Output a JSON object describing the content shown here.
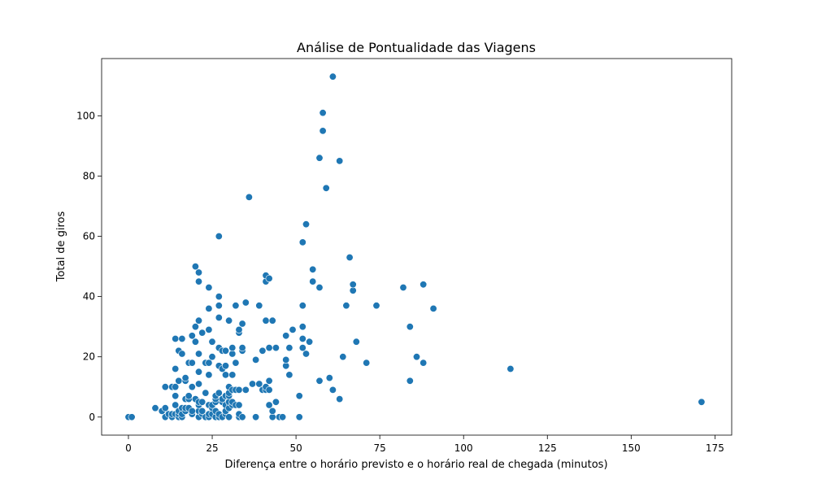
{
  "chart_data": {
    "type": "scatter",
    "title": "Análise de Pontualidade das Viagens",
    "xlabel": "Diferença entre o horário previsto e o horário real de chegada (minutos)",
    "ylabel": "Total de giros",
    "xlim": [
      -8,
      180
    ],
    "ylim": [
      -6,
      119
    ],
    "xticks": [
      0,
      25,
      50,
      75,
      100,
      125,
      150,
      175
    ],
    "yticks": [
      0,
      20,
      40,
      60,
      80,
      100
    ],
    "grid": false,
    "point_color": "#1f77b4",
    "series": [
      {
        "points": [
          [
            0,
            0
          ],
          [
            1,
            0
          ],
          [
            8,
            3
          ],
          [
            10,
            2
          ],
          [
            11,
            0
          ],
          [
            11,
            3
          ],
          [
            11,
            10
          ],
          [
            12,
            1
          ],
          [
            13,
            0
          ],
          [
            13,
            1
          ],
          [
            13,
            10
          ],
          [
            14,
            1
          ],
          [
            14,
            4
          ],
          [
            14,
            7
          ],
          [
            14,
            10
          ],
          [
            14,
            16
          ],
          [
            14,
            26
          ],
          [
            15,
            0
          ],
          [
            15,
            1
          ],
          [
            15,
            2
          ],
          [
            15,
            12
          ],
          [
            15,
            22
          ],
          [
            16,
            0
          ],
          [
            16,
            1
          ],
          [
            16,
            3
          ],
          [
            16,
            21
          ],
          [
            16,
            26
          ],
          [
            17,
            2
          ],
          [
            17,
            3
          ],
          [
            17,
            6
          ],
          [
            17,
            12
          ],
          [
            17,
            13
          ],
          [
            18,
            3
          ],
          [
            18,
            6
          ],
          [
            18,
            7
          ],
          [
            18,
            18
          ],
          [
            19,
            1
          ],
          [
            19,
            2
          ],
          [
            19,
            10
          ],
          [
            19,
            18
          ],
          [
            19,
            27
          ],
          [
            20,
            6
          ],
          [
            20,
            30
          ],
          [
            20,
            50
          ],
          [
            20,
            25
          ],
          [
            21,
            0
          ],
          [
            21,
            2
          ],
          [
            21,
            4
          ],
          [
            21,
            5
          ],
          [
            21,
            11
          ],
          [
            21,
            15
          ],
          [
            21,
            21
          ],
          [
            21,
            32
          ],
          [
            21,
            45
          ],
          [
            21,
            48
          ],
          [
            22,
            1
          ],
          [
            22,
            2
          ],
          [
            22,
            5
          ],
          [
            22,
            28
          ],
          [
            23,
            0
          ],
          [
            23,
            8
          ],
          [
            23,
            18
          ],
          [
            24,
            0
          ],
          [
            24,
            1
          ],
          [
            24,
            4
          ],
          [
            24,
            14
          ],
          [
            24,
            18
          ],
          [
            24,
            29
          ],
          [
            24,
            36
          ],
          [
            24,
            43
          ],
          [
            25,
            1
          ],
          [
            25,
            3
          ],
          [
            25,
            4
          ],
          [
            25,
            20
          ],
          [
            25,
            25
          ],
          [
            26,
            0
          ],
          [
            26,
            2
          ],
          [
            26,
            5
          ],
          [
            26,
            6
          ],
          [
            26,
            7
          ],
          [
            27,
            0
          ],
          [
            27,
            1
          ],
          [
            27,
            8
          ],
          [
            27,
            17
          ],
          [
            27,
            23
          ],
          [
            27,
            33
          ],
          [
            27,
            37
          ],
          [
            27,
            40
          ],
          [
            27,
            60
          ],
          [
            28,
            0
          ],
          [
            28,
            5
          ],
          [
            28,
            6
          ],
          [
            28,
            16
          ],
          [
            28,
            22
          ],
          [
            29,
            1
          ],
          [
            29,
            2
          ],
          [
            29,
            4
          ],
          [
            29,
            7
          ],
          [
            29,
            14
          ],
          [
            29,
            17
          ],
          [
            29,
            22
          ],
          [
            30,
            0
          ],
          [
            30,
            3
          ],
          [
            30,
            5
          ],
          [
            30,
            7
          ],
          [
            30,
            8
          ],
          [
            30,
            10
          ],
          [
            30,
            32
          ],
          [
            31,
            4
          ],
          [
            31,
            5
          ],
          [
            31,
            9
          ],
          [
            31,
            14
          ],
          [
            31,
            21
          ],
          [
            31,
            23
          ],
          [
            32,
            4
          ],
          [
            32,
            9
          ],
          [
            32,
            18
          ],
          [
            32,
            37
          ],
          [
            33,
            0
          ],
          [
            33,
            1
          ],
          [
            33,
            4
          ],
          [
            33,
            28
          ],
          [
            33,
            29
          ],
          [
            33,
            9
          ],
          [
            34,
            0
          ],
          [
            34,
            22
          ],
          [
            34,
            23
          ],
          [
            34,
            31
          ],
          [
            35,
            9
          ],
          [
            35,
            38
          ],
          [
            36,
            73
          ],
          [
            37,
            11
          ],
          [
            38,
            0
          ],
          [
            38,
            19
          ],
          [
            39,
            11
          ],
          [
            39,
            37
          ],
          [
            40,
            9
          ],
          [
            40,
            22
          ],
          [
            41,
            9
          ],
          [
            41,
            10
          ],
          [
            41,
            32
          ],
          [
            41,
            45
          ],
          [
            41,
            47
          ],
          [
            42,
            4
          ],
          [
            42,
            9
          ],
          [
            42,
            12
          ],
          [
            42,
            23
          ],
          [
            42,
            46
          ],
          [
            43,
            0
          ],
          [
            43,
            2
          ],
          [
            43,
            32
          ],
          [
            44,
            5
          ],
          [
            44,
            23
          ],
          [
            45,
            0
          ],
          [
            46,
            0
          ],
          [
            47,
            17
          ],
          [
            47,
            19
          ],
          [
            47,
            27
          ],
          [
            48,
            14
          ],
          [
            48,
            23
          ],
          [
            49,
            29
          ],
          [
            51,
            0
          ],
          [
            51,
            7
          ],
          [
            52,
            23
          ],
          [
            52,
            26
          ],
          [
            52,
            30
          ],
          [
            52,
            37
          ],
          [
            52,
            58
          ],
          [
            53,
            21
          ],
          [
            53,
            64
          ],
          [
            54,
            25
          ],
          [
            55,
            45
          ],
          [
            55,
            49
          ],
          [
            57,
            12
          ],
          [
            57,
            43
          ],
          [
            57,
            86
          ],
          [
            58,
            95
          ],
          [
            58,
            101
          ],
          [
            59,
            76
          ],
          [
            60,
            13
          ],
          [
            61,
            113
          ],
          [
            61,
            9
          ],
          [
            63,
            6
          ],
          [
            63,
            85
          ],
          [
            64,
            20
          ],
          [
            65,
            37
          ],
          [
            66,
            53
          ],
          [
            67,
            42
          ],
          [
            67,
            44
          ],
          [
            68,
            25
          ],
          [
            71,
            18
          ],
          [
            74,
            37
          ],
          [
            82,
            43
          ],
          [
            84,
            12
          ],
          [
            84,
            30
          ],
          [
            86,
            20
          ],
          [
            88,
            18
          ],
          [
            88,
            44
          ],
          [
            91,
            36
          ],
          [
            114,
            16
          ],
          [
            171,
            5
          ]
        ]
      }
    ]
  }
}
